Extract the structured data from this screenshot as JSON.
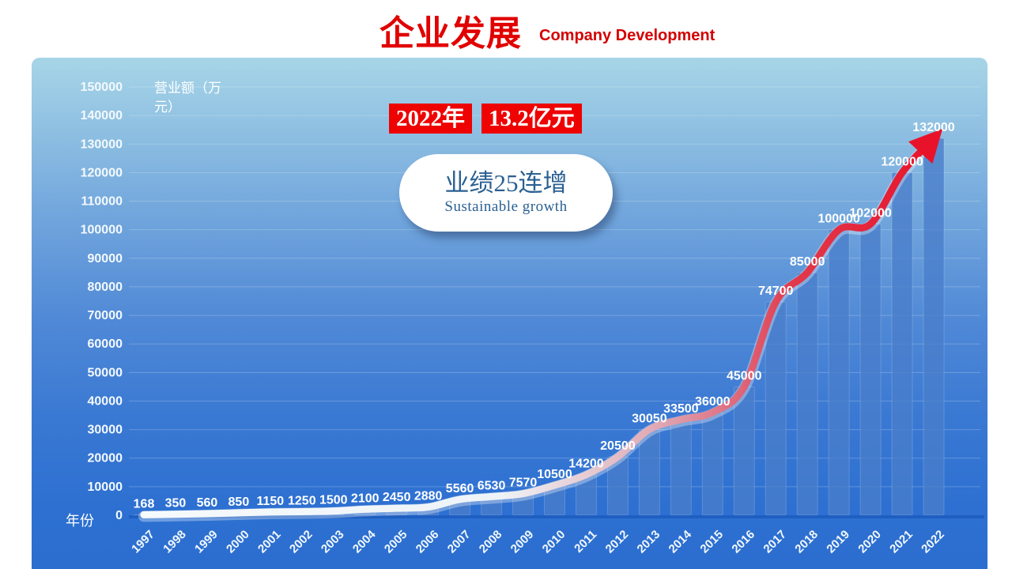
{
  "page": {
    "title": "企业发展",
    "subtitle": "Company Development"
  },
  "badges": {
    "year": "2022年",
    "amount": "13.2亿元"
  },
  "bubble": {
    "title": "业绩25连增",
    "subtitle": "Sustainable growth"
  },
  "chart_data": {
    "type": "bar",
    "title": "企业发展 Company Development",
    "ylabel": "营业额（万元）",
    "ylabel_lines": [
      "营业额（万",
      "元）"
    ],
    "xlabel": "年份",
    "categories": [
      1997,
      1998,
      1999,
      2000,
      2001,
      2002,
      2003,
      2004,
      2005,
      2006,
      2007,
      2008,
      2009,
      2010,
      2011,
      2012,
      2013,
      2014,
      2015,
      2016,
      2017,
      2018,
      2019,
      2020,
      2021,
      2022
    ],
    "values": [
      168,
      350,
      560,
      850,
      1150,
      1250,
      1500,
      2100,
      2450,
      2880,
      5560,
      6530,
      7570,
      10500,
      14200,
      20500,
      30050,
      33500,
      36000,
      45000,
      74700,
      85000,
      100000,
      102000,
      120000,
      132000
    ],
    "ylim": [
      0,
      150000
    ],
    "ytick_step": 10000,
    "grid": true,
    "legend": "none",
    "overlay_line": {
      "follows": "values",
      "arrow_end": true,
      "description": "smooth trend line over bar tops, white at start fading to red at end with large red arrowhead"
    },
    "colors": {
      "title_red": "#e10000",
      "subtitle_red": "#d40000",
      "badge_bg": "#ee0202",
      "badge_text": "#ffffff",
      "bubble_text": "#2a6093",
      "panel_top": "#a7d5e7",
      "panel_bottom": "#2b6ed0",
      "bar_fill": "rgba(73,126,203,0.78)",
      "bar_edge": "rgba(255,255,255,0.18)",
      "label_text": "#ffffff",
      "grid": "rgba(255,255,255,0.22)",
      "axis": "rgba(28,92,190,0.85)",
      "arrow": "#e8132b",
      "line_gradient": [
        [
          "0%",
          "#f6fafc"
        ],
        [
          "45%",
          "#eef3f7"
        ],
        [
          "56%",
          "#e6ccd3"
        ],
        [
          "66%",
          "#dfa3b0"
        ],
        [
          "74%",
          "#de7082"
        ],
        [
          "82%",
          "#e23a4c"
        ],
        [
          "100%",
          "#e8132b"
        ]
      ]
    }
  }
}
